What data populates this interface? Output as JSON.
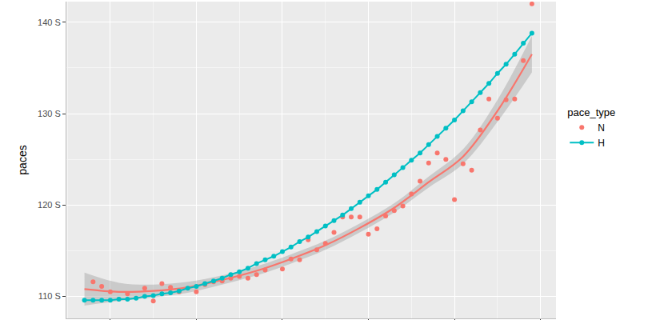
{
  "chart_data": {
    "type": "scatter",
    "y_label": "paces",
    "legend_title": "pace_type",
    "legend": "right",
    "grid": true,
    "tick_labels": "y",
    "xlim": [
      4.9,
      61.8
    ],
    "xticks": [
      10,
      20,
      30,
      40,
      50,
      60
    ],
    "ylim": [
      107.6,
      142.25
    ],
    "yticks": [
      {
        "value": 110,
        "label": "110 S"
      },
      {
        "value": 120,
        "label": "120 S"
      },
      {
        "value": 130,
        "label": "130 S"
      },
      {
        "value": 140,
        "label": "140 S"
      }
    ],
    "series": [
      {
        "name": "N",
        "color": "#F8766D",
        "type": "scatter",
        "marker": "circle",
        "x": [
          8,
          9,
          10,
          12,
          14,
          15,
          16,
          17,
          18,
          20,
          21,
          22,
          23,
          24,
          25,
          26,
          27,
          28,
          30,
          31,
          32,
          33,
          34,
          35,
          36,
          37,
          38,
          39,
          40,
          41,
          42,
          43,
          44,
          45,
          46,
          47,
          48,
          49,
          50,
          51,
          52,
          53,
          54,
          55,
          56,
          57,
          58,
          59
        ],
        "values": [
          111.6,
          111.1,
          110.5,
          110.3,
          110.9,
          109.5,
          111.4,
          111.0,
          110.5,
          110.5,
          111.3,
          111.6,
          111.7,
          112.0,
          112.2,
          112.0,
          112.4,
          112.9,
          113.0,
          114.1,
          114.0,
          116.2,
          115.1,
          115.8,
          117.0,
          118.7,
          118.7,
          118.7,
          116.8,
          117.4,
          118.8,
          119.4,
          119.9,
          121.2,
          122.6,
          124.6,
          125.7,
          125.0,
          120.6,
          124.5,
          123.8,
          128.2,
          131.6,
          129.5,
          131.5,
          131.6,
          135.8,
          142.0
        ],
        "fit_x": [
          7,
          11,
          15,
          19,
          23,
          27,
          31,
          35,
          39,
          43,
          47,
          51,
          55,
          59
        ],
        "fit": [
          110.8,
          110.5,
          110.6,
          111.0,
          111.8,
          112.8,
          114.1,
          115.6,
          117.5,
          119.7,
          122.5,
          125.3,
          130.3,
          136.5
        ],
        "fit_low": [
          109.0,
          109.5,
          109.9,
          110.4,
          111.3,
          112.3,
          113.6,
          115.1,
          117.0,
          119.2,
          121.9,
          124.5,
          129.1,
          134.5
        ],
        "fit_high": [
          112.6,
          111.5,
          111.3,
          111.6,
          112.3,
          113.3,
          114.6,
          116.1,
          118.0,
          120.2,
          123.1,
          126.1,
          131.5,
          138.5
        ]
      },
      {
        "name": "H",
        "color": "#00BFC4",
        "type": "line",
        "marker": "circle",
        "x": [
          7,
          8,
          9,
          10,
          11,
          12,
          13,
          14,
          15,
          16,
          17,
          18,
          19,
          20,
          21,
          22,
          23,
          24,
          25,
          26,
          27,
          28,
          29,
          30,
          31,
          32,
          33,
          34,
          35,
          36,
          37,
          38,
          39,
          40,
          41,
          42,
          43,
          44,
          45,
          46,
          47,
          48,
          49,
          50,
          51,
          52,
          53,
          54,
          55,
          56,
          57,
          58,
          59
        ],
        "values": [
          109.6,
          109.6,
          109.6,
          109.6,
          109.7,
          109.7,
          109.8,
          110.0,
          110.1,
          110.3,
          110.4,
          110.6,
          110.9,
          111.1,
          111.4,
          111.7,
          112.0,
          112.4,
          112.7,
          113.1,
          113.6,
          114.0,
          114.4,
          114.9,
          115.4,
          116.0,
          116.5,
          117.1,
          117.7,
          118.3,
          118.9,
          119.6,
          120.3,
          121.0,
          121.7,
          122.5,
          123.3,
          124.1,
          124.9,
          125.7,
          126.6,
          127.5,
          128.4,
          129.3,
          130.3,
          131.3,
          132.3,
          133.3,
          134.4,
          135.4,
          136.5,
          137.7,
          138.8
        ]
      }
    ]
  }
}
